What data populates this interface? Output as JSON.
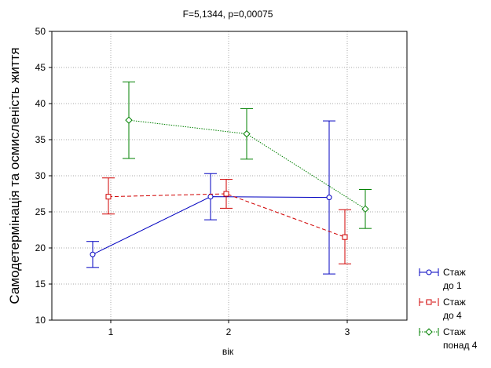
{
  "chart_data": {
    "type": "line",
    "title": "F=5,1344, p=0,00075",
    "xlabel": "вік",
    "ylabel": "Самодетермінація та осмисленість життя",
    "categories": [
      "1",
      "2",
      "3"
    ],
    "ylim": [
      10,
      50
    ],
    "yticks": [
      "10",
      "15",
      "20",
      "25",
      "30",
      "35",
      "40",
      "45",
      "50"
    ],
    "grid": true,
    "legend_position": "bottom-right",
    "series": [
      {
        "name_lines": [
          "Стаж",
          "до 1"
        ],
        "color": "#0000c0",
        "dash": "solid",
        "marker": "circle",
        "values": [
          19.1,
          27.1,
          27.0
        ],
        "err_low": [
          17.3,
          23.9,
          16.4
        ],
        "err_high": [
          20.9,
          30.3,
          37.6
        ]
      },
      {
        "name_lines": [
          "Стаж",
          "до 4"
        ],
        "color": "#d00000",
        "dash": "dashed",
        "marker": "square",
        "values": [
          27.1,
          27.5,
          21.5
        ],
        "err_low": [
          24.7,
          25.5,
          17.8
        ],
        "err_high": [
          29.7,
          29.5,
          25.3
        ]
      },
      {
        "name_lines": [
          "Стаж",
          "понад 4"
        ],
        "color": "#008000",
        "dash": "dotted",
        "marker": "diamond",
        "values": [
          37.7,
          35.8,
          25.4
        ],
        "err_low": [
          32.4,
          32.3,
          22.7
        ],
        "err_high": [
          43.0,
          39.3,
          28.1
        ]
      }
    ]
  }
}
